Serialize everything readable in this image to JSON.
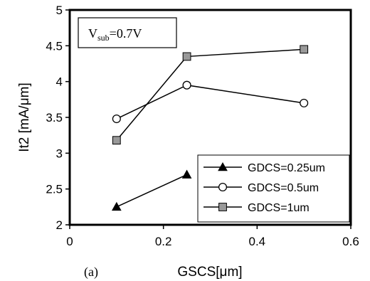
{
  "chart_data": {
    "type": "line",
    "xlabel": "GSCS[μm]",
    "ylabel": "It2 [mA/μm]",
    "xlim": [
      0,
      0.6
    ],
    "ylim": [
      2,
      5
    ],
    "xticks": [
      "0",
      "0.2",
      "0.4",
      "0.6"
    ],
    "yticks": [
      "2",
      "2.5",
      "3",
      "3.5",
      "4",
      "4.5",
      "5"
    ],
    "grid": false,
    "legend_position": "bottom-right",
    "panel_label": "(a)",
    "annotation": {
      "main": "V",
      "sub": "sub",
      "rest": "=0.7V"
    },
    "series": [
      {
        "name": "GDCS=0.25um",
        "marker": "triangle-filled",
        "color": "#000000",
        "x": [
          0.1,
          0.25
        ],
        "y": [
          2.25,
          2.7
        ]
      },
      {
        "name": "GDCS=0.5um",
        "marker": "circle-open",
        "color": "#000000",
        "x": [
          0.1,
          0.25,
          0.5
        ],
        "y": [
          3.48,
          3.95,
          3.7
        ]
      },
      {
        "name": "GDCS=1um",
        "marker": "square-gray",
        "color": "#999999",
        "x": [
          0.1,
          0.25,
          0.5
        ],
        "y": [
          3.18,
          4.35,
          4.45
        ]
      }
    ]
  }
}
